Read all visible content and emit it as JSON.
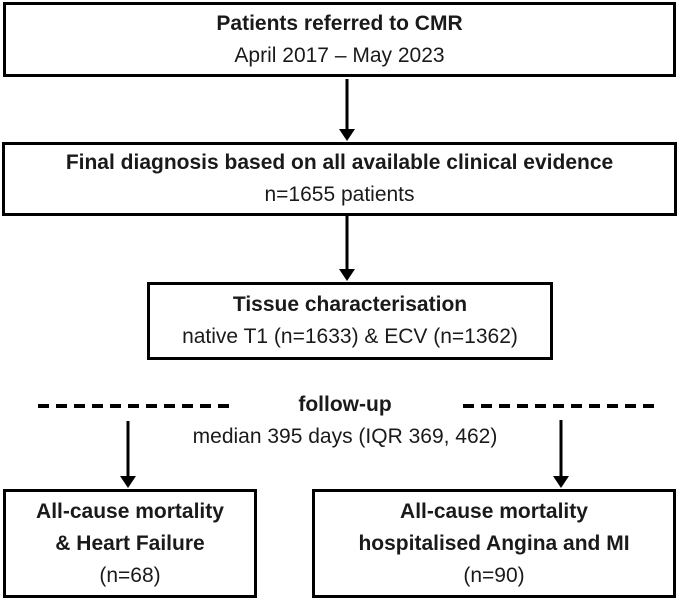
{
  "diagram": {
    "type": "flowchart",
    "background_color": "#ffffff",
    "line_color": "#000000",
    "boxes": {
      "referral": {
        "title": "Patients referred to CMR",
        "subtitle": "April 2017 – May 2023"
      },
      "diagnosis": {
        "title": "Final diagnosis based on all available clinical evidence",
        "subtitle": "n=1655 patients"
      },
      "tissue": {
        "title": "Tissue characterisation",
        "subtitle": "native T1 (n=1633) & ECV (n=1362)"
      },
      "outcome_left": {
        "line1": "All-cause mortality",
        "line2": "& Heart Failure",
        "line3": "(n=68)"
      },
      "outcome_right": {
        "line1": "All-cause mortality",
        "line2": "hospitalised Angina and MI",
        "line3": "(n=90)"
      }
    },
    "followup": {
      "label": "follow-up",
      "median": "median 395 days (IQR 369, 462)"
    }
  }
}
